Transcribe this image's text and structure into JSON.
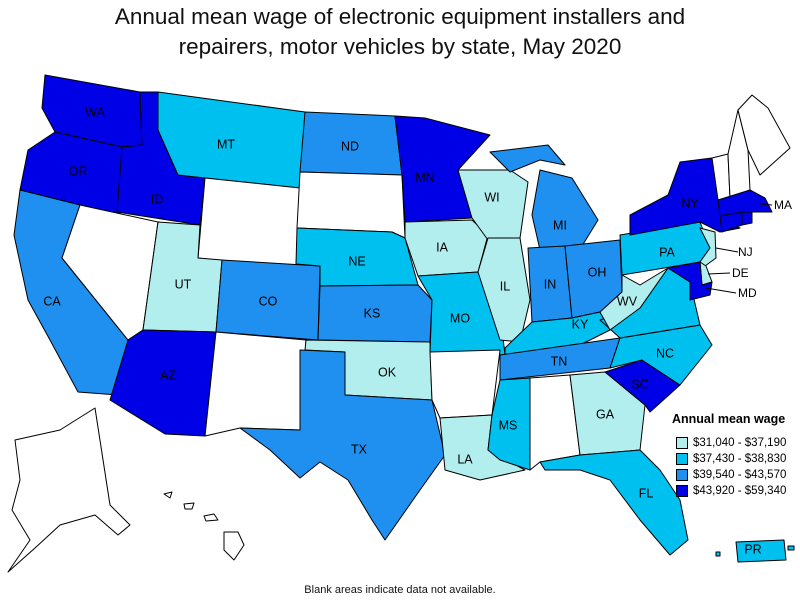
{
  "title_line1": "Annual mean wage of electronic equipment installers and",
  "title_line2": "repairers, motor vehicles by state, May 2020",
  "legend": {
    "title": "Annual mean wage",
    "ranges": [
      {
        "label": "$31,040 - $37,190",
        "color": "#b3eeee"
      },
      {
        "label": "$37,430 - $38,830",
        "color": "#00c0f0"
      },
      {
        "label": "$39,540 - $43,570",
        "color": "#2090f0"
      },
      {
        "label": "$43,920 - $59,340",
        "color": "#0000e6"
      }
    ]
  },
  "footnote": "Blank areas indicate data not available.",
  "no_data_color": "#ffffff",
  "states": {
    "WA": 4,
    "OR": 4,
    "ID": 4,
    "MT": 2,
    "ND": 3,
    "MN": 4,
    "WI": 1,
    "MI": 3,
    "NY": 4,
    "MA": 4,
    "CA": 3,
    "NV": 0,
    "UT": 1,
    "WY": 0,
    "SD": 0,
    "NE": 2,
    "IA": 1,
    "IL": 1,
    "IN": 3,
    "OH": 3,
    "PA": 2,
    "NJ": 1,
    "DE": 1,
    "MD": 4,
    "WV": 1,
    "VA": 2,
    "CO": 3,
    "KS": 3,
    "MO": 2,
    "KY": 2,
    "AZ": 4,
    "NM": 0,
    "OK": 1,
    "AR": 0,
    "TN": 3,
    "NC": 2,
    "SC": 4,
    "TX": 3,
    "LA": 1,
    "MS": 2,
    "AL": 0,
    "GA": 1,
    "FL": 2,
    "ME": 0,
    "NH": 0,
    "VT": 0,
    "CT": 4,
    "RI": 4,
    "AK": 0,
    "HI": 0,
    "PR": 2
  },
  "labels": {
    "WA": "WA",
    "OR": "OR",
    "ID": "ID",
    "MT": "MT",
    "ND": "ND",
    "MN": "MN",
    "WI": "WI",
    "MI": "MI",
    "NY": "NY",
    "MA": "MA",
    "CA": "CA",
    "UT": "UT",
    "CO": "CO",
    "NE": "NE",
    "IA": "IA",
    "IL": "IL",
    "IN": "IN",
    "OH": "OH",
    "PA": "PA",
    "NJ": "NJ",
    "DE": "DE",
    "MD": "MD",
    "WV": "WV",
    "KS": "KS",
    "MO": "MO",
    "KY": "KY",
    "AZ": "AZ",
    "OK": "OK",
    "TN": "TN",
    "NC": "NC",
    "SC": "SC",
    "TX": "TX",
    "LA": "LA",
    "MS": "MS",
    "GA": "GA",
    "FL": "FL",
    "PR": "PR"
  }
}
